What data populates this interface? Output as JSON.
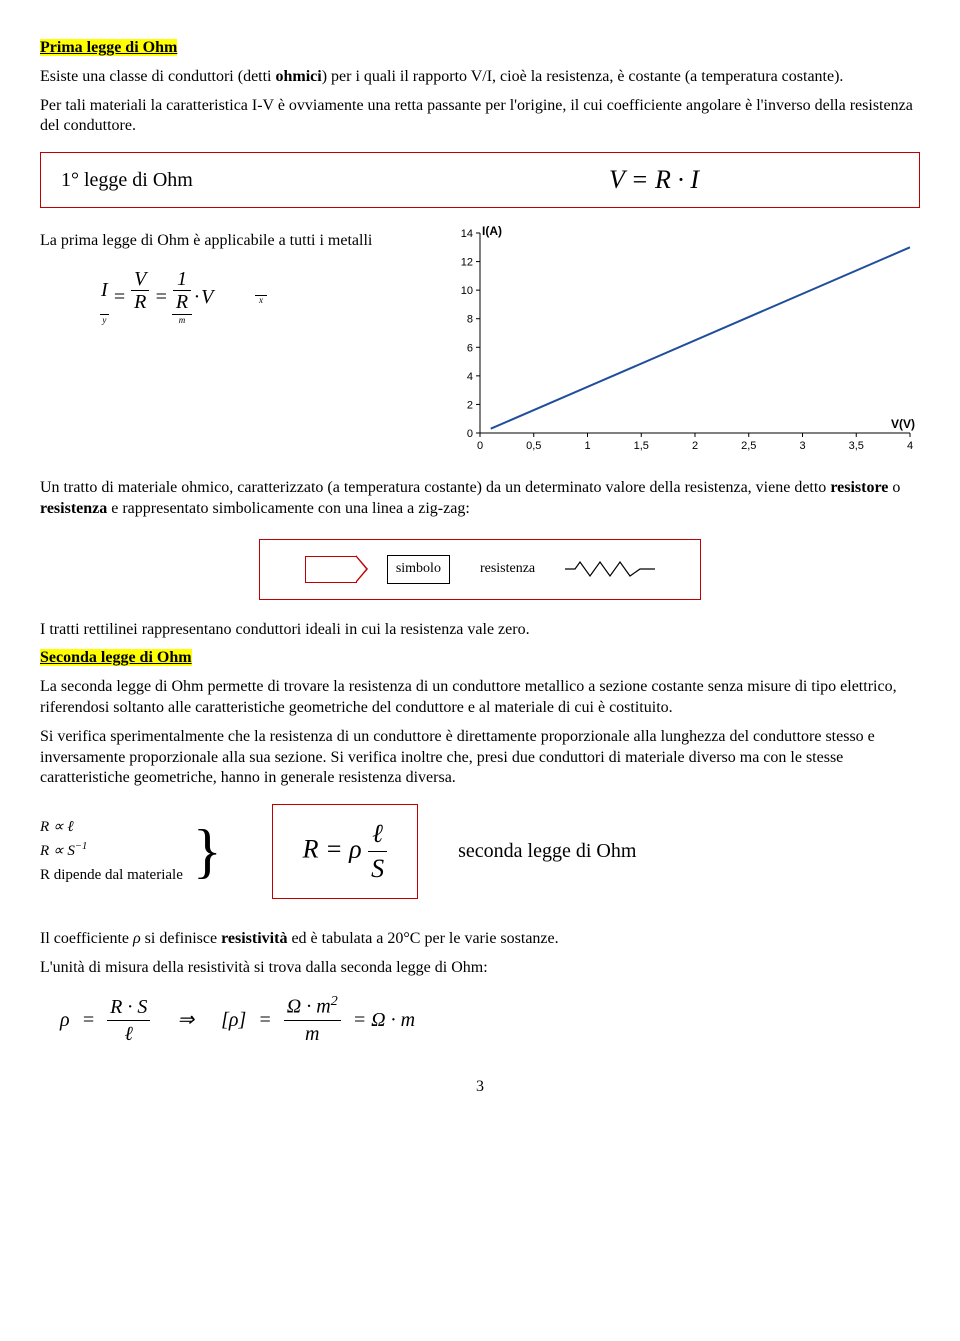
{
  "heading1": "Prima legge di Ohm",
  "para1a": "Esiste una classe di conduttori (detti ",
  "para1b": "ohmici",
  "para1c": ") per i quali il rapporto V/I, cioè la resistenza, è costante (a temperatura costante).",
  "para2": "Per tali materiali la caratteristica I-V è ovviamente una retta passante per l'origine, il cui coefficiente angolare è l'inverso della resistenza del conduttore.",
  "law1_label": "1° legge di Ohm",
  "law1_formula": "V = R · I",
  "applicable_text": "La prima legge di Ohm è applicabile a tutti i metalli",
  "inline_I": "I",
  "inline_V": "V",
  "inline_R": "R",
  "inline_1": "1",
  "inline_y": "y",
  "inline_m": "m",
  "inline_x": "x",
  "chart": {
    "y_label": "I(A)",
    "x_label": "V(V)",
    "y_ticks": [
      "0",
      "2",
      "4",
      "6",
      "8",
      "10",
      "12",
      "14"
    ],
    "x_ticks": [
      "0",
      "0,5",
      "1",
      "1,5",
      "2",
      "2,5",
      "3",
      "3,5",
      "4"
    ],
    "ylim": [
      0,
      14
    ],
    "xlim": [
      0,
      4
    ],
    "line_color": "#1f4e9c",
    "tick_color": "#000000",
    "line_points": [
      [
        0.1,
        0.3
      ],
      [
        4,
        13
      ]
    ]
  },
  "para3a": "Un tratto di materiale ohmico, caratterizzato (a temperatura costante) da un determinato valore della resistenza, viene detto ",
  "para3b": "resistore",
  "para3c": " o ",
  "para3d": "resistenza",
  "para3e": " e rappresentato simbolicamente con una linea a zig-zag:",
  "symbol_label": "simbolo",
  "resistor_label": "resistenza",
  "para4": "I tratti rettilinei rappresentano conduttori ideali in cui la resistenza vale zero.",
  "heading2": "Seconda legge di Ohm",
  "para5": "La seconda legge di Ohm permette di trovare la resistenza di un conduttore metallico a sezione costante senza misure di tipo elettrico, riferendosi soltanto alle caratteristiche geometriche del conduttore e al materiale di cui è costituito.",
  "para6": "Si verifica sperimentalmente che la resistenza di un conduttore è direttamente proporzionale alla lunghezza del conduttore stesso e inversamente proporzionale alla sua sezione. Si verifica inoltre che, presi due conduttori di materiale diverso ma con le stesse caratteristiche geometriche, hanno in generale resistenza diversa.",
  "brace_line1": "R ∝ ℓ",
  "brace_line2_a": "R ∝ S",
  "brace_line2_b": "−1",
  "brace_line3": "R  dipende dal materiale",
  "law2_formula_R": "R",
  "law2_formula_eq": "=",
  "law2_formula_rho": "ρ",
  "law2_formula_num": "ℓ",
  "law2_formula_den": "S",
  "law2_label": "seconda legge di Ohm",
  "para7a": "Il coefficiente ",
  "para7b": "ρ",
  "para7c": " si definisce ",
  "para7d": "resistività",
  "para7e": " ed è tabulata a 20°C per le varie sostanze.",
  "para8": "L'unità di misura della resistività si trova dalla seconda legge di Ohm:",
  "unit_rho": "ρ",
  "unit_RS": "R · S",
  "unit_ell": "ℓ",
  "unit_arrow": "⇒",
  "unit_brack_rho": "[ρ]",
  "unit_ohm": "Ω",
  "unit_m": "m",
  "unit_m2": "2",
  "unit_result": "= Ω · m",
  "page_number": "3"
}
